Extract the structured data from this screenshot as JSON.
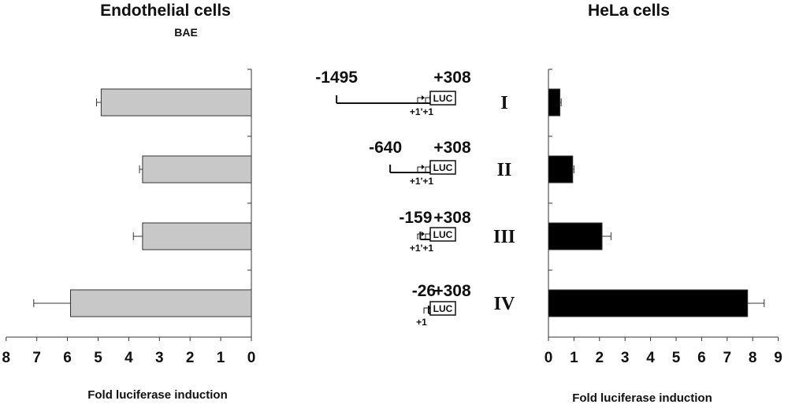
{
  "chart_data": [
    {
      "type": "bar",
      "orientation": "horizontal",
      "title": "Endothelial cells",
      "subtitle": "BAE",
      "xlabel": "Fold luciferase induction",
      "categories": [
        "I",
        "II",
        "III",
        "IV"
      ],
      "values": [
        4.9,
        3.55,
        3.55,
        5.9
      ],
      "errors": [
        0.15,
        0.1,
        0.3,
        1.2
      ],
      "xlim": [
        0,
        8
      ],
      "x_ticks": [
        "0",
        "1",
        "2",
        "3",
        "4",
        "5",
        "6",
        "7",
        "8"
      ],
      "x_reversed": true,
      "bar_color": "#c8c8c8",
      "grid": false
    },
    {
      "type": "bar",
      "orientation": "horizontal",
      "title": "HeLa cells",
      "xlabel": "Fold luciferase induction",
      "categories": [
        "I",
        "II",
        "III",
        "IV"
      ],
      "values": [
        0.45,
        0.95,
        2.1,
        7.8
      ],
      "errors": [
        0.05,
        0.05,
        0.35,
        0.65
      ],
      "xlim": [
        0,
        9
      ],
      "x_ticks": [
        "0",
        "1",
        "2",
        "3",
        "4",
        "5",
        "6",
        "7",
        "8",
        "9"
      ],
      "x_reversed": false,
      "bar_color": "#000000",
      "grid": false
    }
  ],
  "constructs": [
    {
      "roman": "I",
      "start": "-1495",
      "end": "+308",
      "luc": "LUC",
      "tss": "+1'+1",
      "start_pos": -1495
    },
    {
      "roman": "II",
      "start": "-640",
      "end": "+308",
      "luc": "LUC",
      "tss": "+1'+1",
      "start_pos": -640
    },
    {
      "roman": "III",
      "start": "-159",
      "end": "+308",
      "luc": "LUC",
      "tss": "+1'+1",
      "start_pos": -159
    },
    {
      "roman": "IV",
      "start": "-26",
      "end": "+308",
      "luc": "LUC",
      "tss": "+1",
      "start_pos": -26
    }
  ]
}
